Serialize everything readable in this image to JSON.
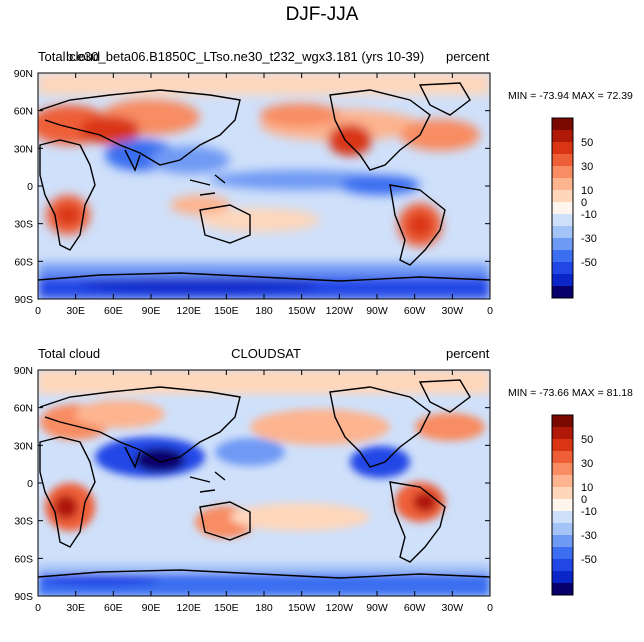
{
  "title": "DJF-JJA",
  "colors": {
    "scale": [
      "#08006b",
      "#0a25c8",
      "#2047e6",
      "#3b6ef0",
      "#6f9af4",
      "#a4c3f7",
      "#cfe0fa",
      "#fff5ec",
      "#fed7bb",
      "#fdb48f",
      "#f88c62",
      "#ee5e37",
      "#d93413",
      "#b01807",
      "#7a0a00"
    ],
    "coast": "#000000"
  },
  "x_ticks": [
    "0",
    "30E",
    "60E",
    "90E",
    "120E",
    "150E",
    "180",
    "150W",
    "120W",
    "90W",
    "60W",
    "30W",
    "0"
  ],
  "y_ticks": [
    "90N",
    "60N",
    "30N",
    "0",
    "30S",
    "60S",
    "90S"
  ],
  "colorbar_labels": [
    "50",
    "30",
    "10",
    "0",
    "-10",
    "-30",
    "-50"
  ],
  "panels": [
    {
      "name": "model",
      "left_label": "Total cloud",
      "center_label": "b.e30_beta06.B1850C_LTso.ne30_t232_wgx3.181 (yrs 10-39)",
      "right_label": "percent",
      "minmax": "MIN = -73.94 MAX =  72.39"
    },
    {
      "name": "obs",
      "left_label": "Total cloud",
      "center_label": "CLOUDSAT",
      "right_label": "percent",
      "minmax": "MIN = -73.66 MAX =  81.18"
    }
  ]
}
